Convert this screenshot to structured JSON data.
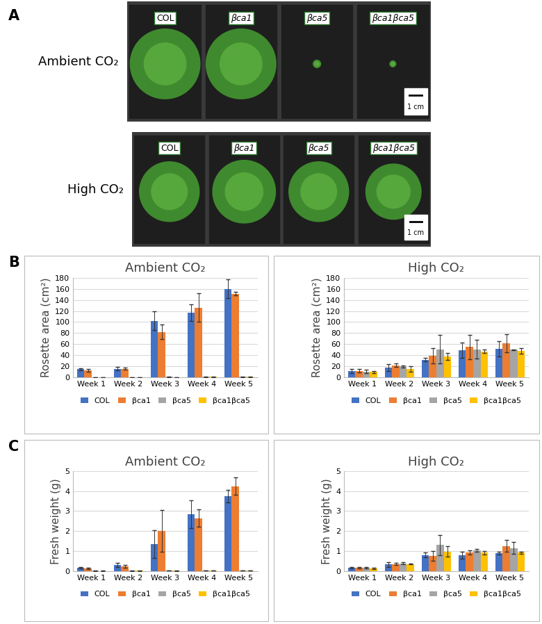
{
  "panel_labels": [
    "A",
    "B",
    "C"
  ],
  "photo_panel": {
    "rows": [
      {
        "label": "Ambient CO₂",
        "plants": [
          "COL",
          "βca1",
          "βca5",
          "βca1βca5"
        ],
        "scale_bar": "1 cm"
      },
      {
        "label": "High CO₂",
        "plants": [
          "COL",
          "βca1",
          "βca5",
          "βca1βca5"
        ],
        "scale_bar": "1 cm"
      }
    ]
  },
  "chart_data": [
    {
      "type": "bar",
      "title": "Ambient CO₂",
      "y_label": "Rosette area (cm²)",
      "categories": [
        "Week 1",
        "Week 2",
        "Week 3",
        "Week 4",
        "Week 5"
      ],
      "ylim": [
        0,
        180
      ],
      "yticks": [
        0,
        20,
        40,
        60,
        80,
        100,
        120,
        140,
        160,
        180
      ],
      "grid": true,
      "legend": "upper center",
      "series": [
        {
          "name": "COL",
          "color": "#4472c4",
          "values": [
            15,
            16,
            102,
            117,
            160
          ],
          "errors": [
            2,
            3,
            17,
            15,
            17
          ]
        },
        {
          "name": "βca1",
          "color": "#ed7d31",
          "values": [
            13,
            16,
            82,
            126,
            151
          ],
          "errors": [
            2,
            2,
            13,
            26,
            3
          ]
        },
        {
          "name": "βca5",
          "color": "#a5a5a5",
          "values": [
            0.5,
            0.5,
            1,
            1,
            1
          ],
          "errors": [
            0.2,
            0.2,
            0.3,
            0.5,
            0.5
          ]
        },
        {
          "name": "βca1βca5",
          "color": "#ffc000",
          "values": [
            0.3,
            0.3,
            0.5,
            1,
            1
          ],
          "errors": [
            0.1,
            0.1,
            0.2,
            0.5,
            0.5
          ]
        }
      ]
    },
    {
      "type": "bar",
      "title": "High CO₂",
      "categories": [
        "Week 1",
        "Week 2",
        "Week 3",
        "Week 4",
        "Week 5"
      ],
      "ylim": [
        0,
        180
      ],
      "yticks": [
        0,
        20,
        40,
        60,
        80,
        100,
        120,
        140,
        160,
        180
      ],
      "grid": true,
      "legend": "upper center",
      "series": [
        {
          "name": "COL",
          "color": "#4472c4",
          "values": [
            12,
            18,
            32,
            49,
            52
          ],
          "errors": [
            4,
            6,
            3,
            14,
            14
          ]
        },
        {
          "name": "βca1",
          "color": "#ed7d31",
          "values": [
            12,
            22,
            39,
            55,
            62
          ],
          "errors": [
            3,
            3,
            14,
            22,
            16
          ]
        },
        {
          "name": "βca5",
          "color": "#a5a5a5",
          "values": [
            11,
            20,
            51,
            51,
            50
          ],
          "errors": [
            3,
            2,
            26,
            17,
            1
          ]
        },
        {
          "name": "βca1βca5",
          "color": "#ffc000",
          "values": [
            10,
            16,
            38,
            47,
            48
          ],
          "errors": [
            2,
            5,
            6,
            3,
            5
          ]
        }
      ]
    },
    {
      "type": "bar",
      "title": "Ambient CO₂",
      "y_label": "Fresh weight (g)",
      "categories": [
        "Week 1",
        "Week 2",
        "Week 3",
        "Week 4",
        "Week 5"
      ],
      "ylim": [
        0,
        5
      ],
      "yticks": [
        0,
        1,
        2,
        3,
        4,
        5
      ],
      "grid": true,
      "legend": "upper center",
      "series": [
        {
          "name": "COL",
          "color": "#4472c4",
          "values": [
            0.15,
            0.3,
            1.35,
            2.85,
            3.75
          ],
          "errors": [
            0.03,
            0.1,
            0.7,
            0.7,
            0.3
          ]
        },
        {
          "name": "βca1",
          "color": "#ed7d31",
          "values": [
            0.13,
            0.22,
            2.0,
            2.65,
            4.25
          ],
          "errors": [
            0.03,
            0.07,
            1.05,
            0.45,
            0.45
          ]
        },
        {
          "name": "βca5",
          "color": "#a5a5a5",
          "values": [
            0.01,
            0.01,
            0.02,
            0.02,
            0.03
          ],
          "errors": [
            0.005,
            0.005,
            0.01,
            0.01,
            0.01
          ]
        },
        {
          "name": "βca1βca5",
          "color": "#ffc000",
          "values": [
            0.005,
            0.01,
            0.01,
            0.02,
            0.02
          ],
          "errors": [
            0.003,
            0.005,
            0.005,
            0.01,
            0.01
          ]
        }
      ]
    },
    {
      "type": "bar",
      "title": "High CO₂",
      "categories": [
        "Week 1",
        "Week 2",
        "Week 3",
        "Week 4",
        "Week 5"
      ],
      "ylim": [
        0,
        5
      ],
      "yticks": [
        0,
        1,
        2,
        3,
        4,
        5
      ],
      "grid": true,
      "legend": "upper center",
      "series": [
        {
          "name": "COL",
          "color": "#4472c4",
          "values": [
            0.15,
            0.33,
            0.8,
            0.78,
            0.9
          ],
          "errors": [
            0.03,
            0.12,
            0.12,
            0.18,
            0.08
          ]
        },
        {
          "name": "βca1",
          "color": "#ed7d31",
          "values": [
            0.15,
            0.35,
            0.75,
            0.92,
            1.25
          ],
          "errors": [
            0.03,
            0.05,
            0.25,
            0.1,
            0.3
          ]
        },
        {
          "name": "βca5",
          "color": "#a5a5a5",
          "values": [
            0.15,
            0.38,
            1.3,
            1.03,
            1.15
          ],
          "errors": [
            0.03,
            0.05,
            0.5,
            0.08,
            0.3
          ]
        },
        {
          "name": "βca1βca5",
          "color": "#ffc000",
          "values": [
            0.13,
            0.35,
            0.98,
            0.92,
            0.92
          ],
          "errors": [
            0.02,
            0.03,
            0.25,
            0.08,
            0.05
          ]
        }
      ]
    }
  ]
}
